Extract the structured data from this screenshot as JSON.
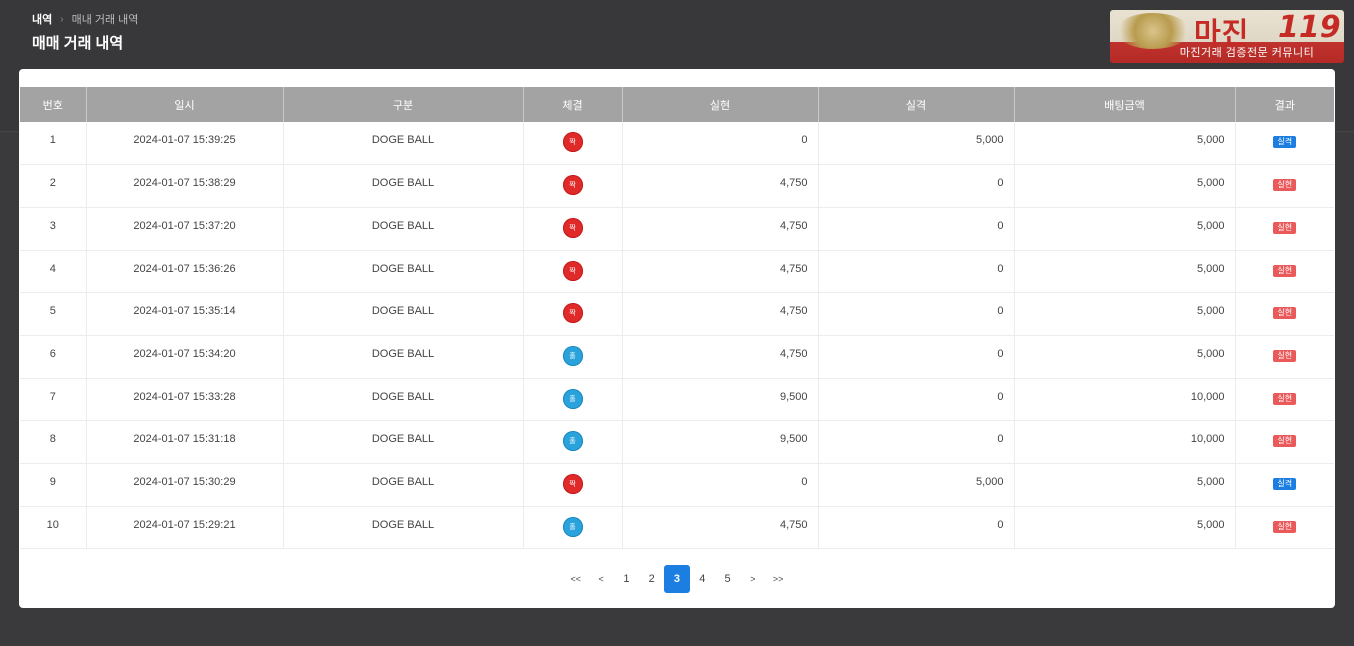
{
  "breadcrumb": {
    "home": "내역",
    "separator": "›",
    "current": "매내 거래 내역"
  },
  "page_title": "매매 거래 내역",
  "logo": {
    "main": "마진",
    "number": "119",
    "sub": "마진거래 검증전문 커뮤니티"
  },
  "table": {
    "headers": [
      "번호",
      "일시",
      "구분",
      "체결",
      "실현",
      "실격",
      "배팅금액",
      "결과"
    ],
    "rows": [
      {
        "no": "1",
        "datetime": "2024-01-07 15:39:25",
        "type": "DOGE BALL",
        "ball": "짝",
        "ball_color": "red",
        "realized": "0",
        "lost": "5,000",
        "bet": "5,000",
        "result": "실격",
        "result_kind": "loss"
      },
      {
        "no": "2",
        "datetime": "2024-01-07 15:38:29",
        "type": "DOGE BALL",
        "ball": "짝",
        "ball_color": "red",
        "realized": "4,750",
        "lost": "0",
        "bet": "5,000",
        "result": "실현",
        "result_kind": "win"
      },
      {
        "no": "3",
        "datetime": "2024-01-07 15:37:20",
        "type": "DOGE BALL",
        "ball": "짝",
        "ball_color": "red",
        "realized": "4,750",
        "lost": "0",
        "bet": "5,000",
        "result": "실현",
        "result_kind": "win"
      },
      {
        "no": "4",
        "datetime": "2024-01-07 15:36:26",
        "type": "DOGE BALL",
        "ball": "짝",
        "ball_color": "red",
        "realized": "4,750",
        "lost": "0",
        "bet": "5,000",
        "result": "실현",
        "result_kind": "win"
      },
      {
        "no": "5",
        "datetime": "2024-01-07 15:35:14",
        "type": "DOGE BALL",
        "ball": "짝",
        "ball_color": "red",
        "realized": "4,750",
        "lost": "0",
        "bet": "5,000",
        "result": "실현",
        "result_kind": "win"
      },
      {
        "no": "6",
        "datetime": "2024-01-07 15:34:20",
        "type": "DOGE BALL",
        "ball": "홀",
        "ball_color": "blue",
        "realized": "4,750",
        "lost": "0",
        "bet": "5,000",
        "result": "실현",
        "result_kind": "win"
      },
      {
        "no": "7",
        "datetime": "2024-01-07 15:33:28",
        "type": "DOGE BALL",
        "ball": "홀",
        "ball_color": "blue",
        "realized": "9,500",
        "lost": "0",
        "bet": "10,000",
        "result": "실현",
        "result_kind": "win"
      },
      {
        "no": "8",
        "datetime": "2024-01-07 15:31:18",
        "type": "DOGE BALL",
        "ball": "홀",
        "ball_color": "blue",
        "realized": "9,500",
        "lost": "0",
        "bet": "10,000",
        "result": "실현",
        "result_kind": "win"
      },
      {
        "no": "9",
        "datetime": "2024-01-07 15:30:29",
        "type": "DOGE BALL",
        "ball": "짝",
        "ball_color": "red",
        "realized": "0",
        "lost": "5,000",
        "bet": "5,000",
        "result": "실격",
        "result_kind": "loss"
      },
      {
        "no": "10",
        "datetime": "2024-01-07 15:29:21",
        "type": "DOGE BALL",
        "ball": "홀",
        "ball_color": "blue",
        "realized": "4,750",
        "lost": "0",
        "bet": "5,000",
        "result": "실현",
        "result_kind": "win"
      }
    ]
  },
  "pagination": {
    "first": "<<",
    "prev": "<",
    "pages": [
      "1",
      "2",
      "3",
      "4",
      "5"
    ],
    "current": "3",
    "next": ">",
    "last": ">>"
  },
  "colors": {
    "accent": "#1b7ee0",
    "win_badge": "#ea5a5a",
    "loss_badge": "#1b7ee0",
    "ball_red": "#e02a2a",
    "ball_blue": "#2aa3dc",
    "header_bg": "#a3a3a3"
  }
}
